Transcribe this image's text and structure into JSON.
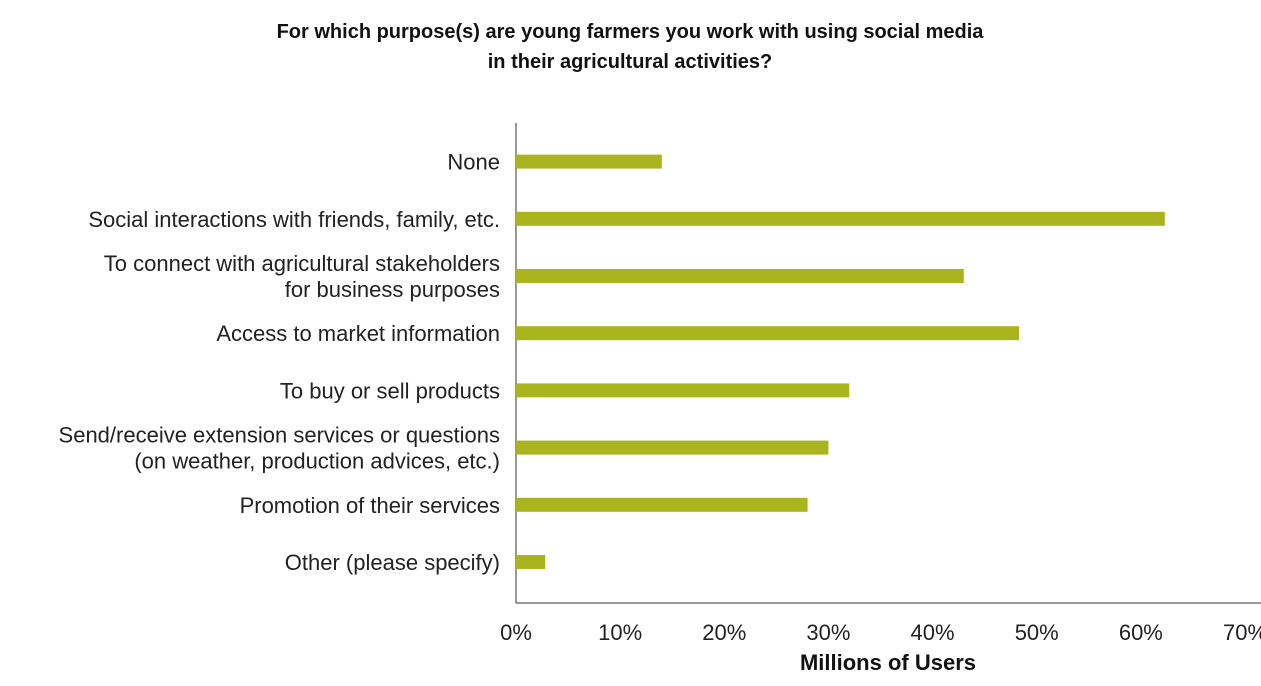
{
  "chart_data": {
    "type": "bar",
    "orientation": "horizontal",
    "title_lines": [
      "For which purpose(s) are young farmers you work with using social media",
      "in their agricultural activities?"
    ],
    "xlabel": "Millions of Users",
    "ylabel": "",
    "categories": [
      [
        "None"
      ],
      [
        "Social interactions with friends, family, etc."
      ],
      [
        "To connect with agricultural stakeholders",
        "for business purposes"
      ],
      [
        "Access to market information"
      ],
      [
        "To buy or sell products"
      ],
      [
        "Send/receive extension services or questions",
        "(on weather, production advices, etc.)"
      ],
      [
        "Promotion of their services"
      ],
      [
        "Other (please specify)"
      ]
    ],
    "values": [
      14,
      62.3,
      43,
      48.3,
      32,
      30,
      28,
      2.8
    ],
    "xlim": [
      0,
      70
    ],
    "ticks": [
      "0%",
      "10%",
      "20%",
      "30%",
      "40%",
      "50%",
      "60%",
      "70%"
    ],
    "bar_color": "#aab41e",
    "grid": false,
    "legend": "none"
  }
}
